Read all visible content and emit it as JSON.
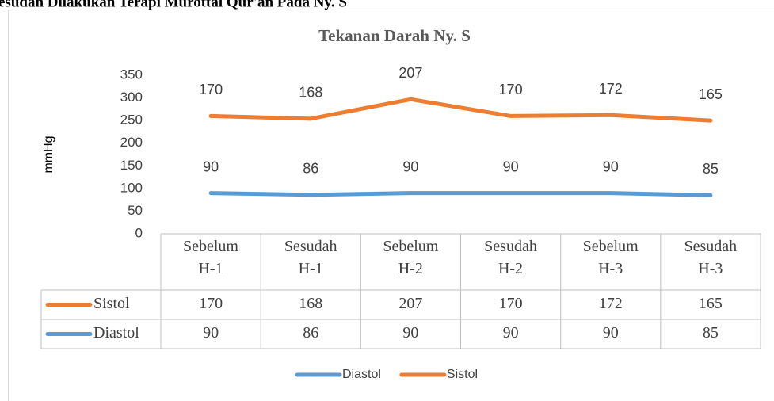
{
  "caption": "esudah Dilakukan Terapi Murottal Qur'an Pada Ny. S",
  "chart_data": {
    "type": "line",
    "stacked": true,
    "title": "Tekanan Darah Ny. S",
    "y_label": "mmHg",
    "categories": [
      "Sebelum H-1",
      "Sesudah H-1",
      "Sebelum H-2",
      "Sesudah H-2",
      "Sebelum H-3",
      "Sesudah H-3"
    ],
    "series": [
      {
        "name": "Diastol",
        "color": "#5b9bd5",
        "values": [
          90,
          86,
          90,
          90,
          90,
          85
        ]
      },
      {
        "name": "Sistol",
        "color": "#ed7d31",
        "values": [
          170,
          168,
          207,
          170,
          172,
          165
        ]
      }
    ],
    "ylim": [
      0,
      350
    ],
    "yticks": [
      0,
      50,
      100,
      150,
      200,
      250,
      300,
      350
    ],
    "grid": false,
    "data_table": true,
    "legend": "bottom"
  }
}
